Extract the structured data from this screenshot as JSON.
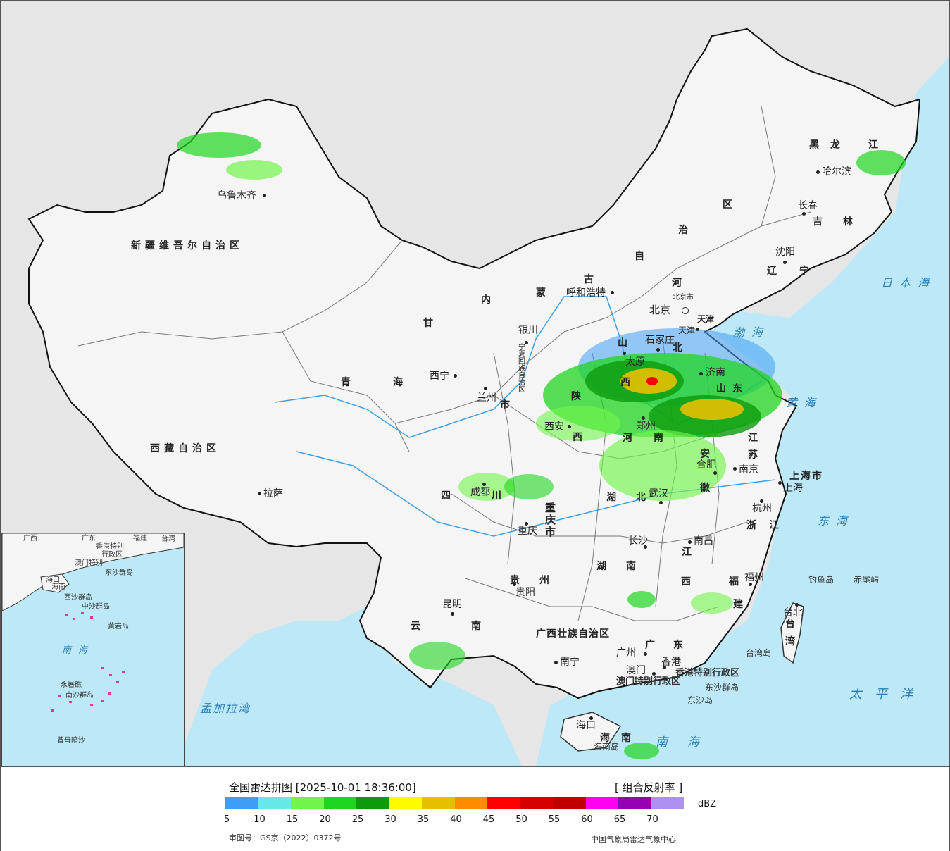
{
  "legend": {
    "title": "全国雷达拼图 [2025-10-01 18:36:00]",
    "product": "[ 组合反射率 ]",
    "unit": "dBZ",
    "colors": [
      "#3e9ef5",
      "#66e8e8",
      "#72f54b",
      "#1fd61f",
      "#0d9b0d",
      "#fffa00",
      "#e6c000",
      "#ff8c00",
      "#ff0000",
      "#d60000",
      "#c00000",
      "#ff00f0",
      "#9600b4",
      "#ad90f0"
    ],
    "ticks": [
      "5",
      "10",
      "15",
      "20",
      "25",
      "30",
      "35",
      "40",
      "45",
      "50",
      "55",
      "60",
      "65",
      "70"
    ],
    "approval": "审图号：GS京（2022）0372号",
    "center": "中国气象局雷达气象中心"
  },
  "map": {
    "colors": {
      "land": "#f5f5f5",
      "ocean": "#bde8f7",
      "outside": "#e6e6e6",
      "border": "#111111",
      "province": "#777777",
      "river": "#3aa0e6"
    },
    "provinces": [
      "新疆维吾尔自治区",
      "西藏自治区",
      "青",
      "海",
      "甘",
      "内",
      "蒙",
      "古",
      "自",
      "治",
      "区",
      "黑",
      "龙",
      "江",
      "吉",
      "林",
      "辽",
      "宁",
      "河",
      "北",
      "山",
      "西",
      "陕",
      "西",
      "四",
      "川",
      "云",
      "南",
      "贵",
      "州",
      "湖",
      "北",
      "湖",
      "南",
      "江",
      "西",
      "浙",
      "江",
      "福",
      "建",
      "广",
      "东",
      "山",
      "东",
      "河",
      "南",
      "安",
      "徽",
      "江",
      "苏",
      "宁夏回族自治区",
      "重庆市",
      "广西壮族自治区",
      "上海市",
      "天津",
      "海",
      "南",
      "台",
      "湾",
      "市"
    ],
    "cities": [
      "乌鲁木齐",
      "拉萨",
      "西宁",
      "兰州",
      "银川",
      "呼和浩特",
      "北京",
      "北京市",
      "天津",
      "石家庄",
      "太原",
      "济南",
      "郑州",
      "西安",
      "成都",
      "重庆",
      "昆明",
      "贵阳",
      "南宁",
      "长沙",
      "武汉",
      "南昌",
      "合肥",
      "南京",
      "杭州",
      "上海",
      "福州",
      "广州",
      "澳门",
      "香港",
      "海口",
      "沈阳",
      "长春",
      "哈尔滨",
      "台北"
    ],
    "seas": [
      "日本海",
      "渤海",
      "黄海",
      "东海",
      "太平洋",
      "南海",
      "孟加拉湾"
    ],
    "islands": [
      "钓鱼岛",
      "赤尾屿",
      "台湾岛",
      "东沙群岛",
      "东沙岛",
      "海南岛",
      "香港特别行政区",
      "澳门特别行政区"
    ],
    "inset": [
      "广西",
      "广东",
      "福建",
      "台湾",
      "海口",
      "香港特别",
      "澳门特别",
      "行政区",
      "东沙群岛",
      "海南",
      "西沙群岛",
      "中沙群岛",
      "黄岩岛",
      "南海",
      "永暑礁",
      "南沙群岛",
      "曾母暗沙"
    ]
  }
}
